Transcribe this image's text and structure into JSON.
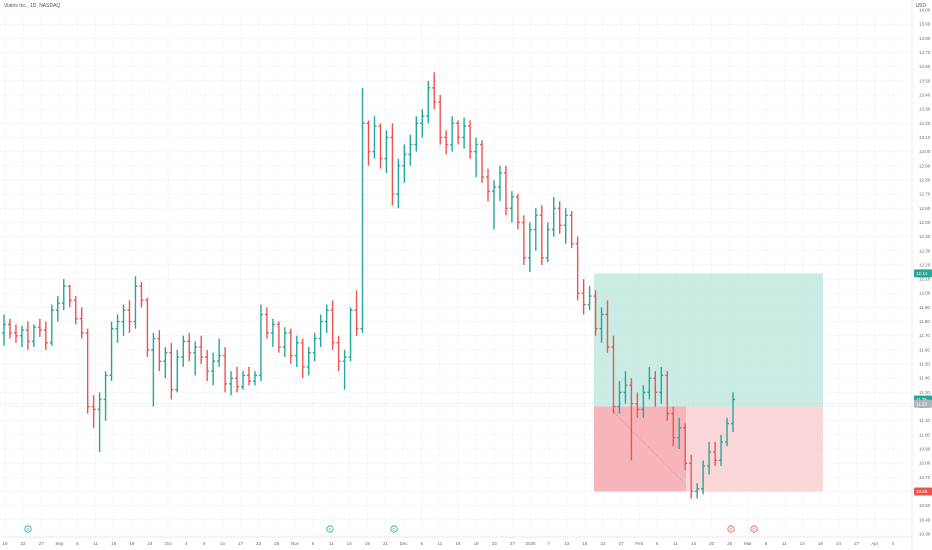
{
  "header": {
    "symbol_title": "Viatris Inc., 1D, NASDAQ",
    "currency": "USD"
  },
  "colors": {
    "up": "#26a69a",
    "down": "#ef5350",
    "target_zone": "#b9e6dc",
    "stop_zone": "#f9c9cd",
    "grid": "#f0f3f6",
    "axis_text": "#6b6b6b"
  },
  "chart_data": {
    "type": "bar",
    "title": "Viatris Inc., 1D, NASDAQ",
    "y_unit": "USD",
    "ylim": [
      10.3,
      14.0
    ],
    "y_ticks": [
      "14.00",
      "13.90",
      "13.80",
      "13.70",
      "13.60",
      "13.50",
      "13.40",
      "13.30",
      "13.20",
      "13.10",
      "13.00",
      "12.90",
      "12.80",
      "12.70",
      "12.60",
      "12.50",
      "12.40",
      "12.30",
      "12.20",
      "12.10",
      "12.00",
      "11.90",
      "11.80",
      "11.70",
      "11.60",
      "11.50",
      "11.40",
      "11.30",
      "11.20",
      "11.10",
      "11.00",
      "10.90",
      "10.80",
      "10.70",
      "10.60",
      "10.50",
      "10.40",
      "10.30"
    ],
    "x_ticks": [
      "19",
      "22",
      "27",
      "Sep",
      "6",
      "11",
      "16",
      "19",
      "24",
      "Oct",
      "4",
      "9",
      "14",
      "17",
      "22",
      "25",
      "Nov",
      "6",
      "11",
      "14",
      "19",
      "21",
      "Dec",
      "6",
      "11",
      "16",
      "19",
      "23",
      "27",
      "2025",
      "7",
      "13",
      "16",
      "22",
      "27",
      "Feb",
      "6",
      "11",
      "14",
      "20",
      "25",
      "Mar",
      "6",
      "11",
      "14",
      "19",
      "24",
      "27",
      "Apr",
      "4"
    ],
    "series": [
      {
        "ohlc": [
          [
            11.72,
            11.85,
            11.63,
            11.78
          ],
          [
            11.78,
            11.82,
            11.68,
            11.72
          ],
          [
            11.72,
            11.78,
            11.65,
            11.7
          ],
          [
            11.7,
            11.77,
            11.62,
            11.74
          ],
          [
            11.74,
            11.8,
            11.6,
            11.66
          ],
          [
            11.66,
            11.78,
            11.62,
            11.76
          ],
          [
            11.76,
            11.82,
            11.69,
            11.74
          ],
          [
            11.74,
            11.8,
            11.6,
            11.65
          ],
          [
            11.65,
            11.92,
            11.63,
            11.88
          ],
          [
            11.88,
            11.98,
            11.8,
            11.93
          ],
          [
            11.93,
            12.1,
            11.88,
            12.05
          ],
          [
            12.05,
            12.06,
            11.9,
            11.95
          ],
          [
            11.95,
            11.98,
            11.78,
            11.82
          ],
          [
            11.82,
            11.9,
            11.68,
            11.72
          ],
          [
            11.72,
            11.75,
            11.15,
            11.2
          ],
          [
            11.2,
            11.28,
            11.05,
            11.18
          ],
          [
            11.18,
            11.3,
            10.88,
            11.25
          ],
          [
            11.25,
            11.45,
            11.1,
            11.42
          ],
          [
            11.42,
            11.8,
            11.38,
            11.75
          ],
          [
            11.75,
            11.85,
            11.65,
            11.8
          ],
          [
            11.8,
            11.92,
            11.7,
            11.88
          ],
          [
            11.88,
            11.95,
            11.72,
            11.8
          ],
          [
            11.8,
            12.12,
            11.75,
            12.05
          ],
          [
            12.05,
            12.08,
            11.9,
            11.95
          ],
          [
            11.95,
            11.97,
            11.55,
            11.6
          ],
          [
            11.6,
            11.72,
            11.2,
            11.68
          ],
          [
            11.68,
            11.74,
            11.45,
            11.52
          ],
          [
            11.52,
            11.62,
            11.4,
            11.58
          ],
          [
            11.58,
            11.65,
            11.25,
            11.32
          ],
          [
            11.32,
            11.6,
            11.3,
            11.55
          ],
          [
            11.55,
            11.7,
            11.48,
            11.66
          ],
          [
            11.66,
            11.72,
            11.52,
            11.58
          ],
          [
            11.58,
            11.66,
            11.42,
            11.62
          ],
          [
            11.62,
            11.7,
            11.5,
            11.55
          ],
          [
            11.55,
            11.6,
            11.38,
            11.45
          ],
          [
            11.45,
            11.58,
            11.35,
            11.52
          ],
          [
            11.52,
            11.68,
            11.48,
            11.56
          ],
          [
            11.56,
            11.62,
            11.3,
            11.36
          ],
          [
            11.36,
            11.45,
            11.28,
            11.4
          ],
          [
            11.4,
            11.48,
            11.3,
            11.34
          ],
          [
            11.34,
            11.45,
            11.32,
            11.42
          ],
          [
            11.42,
            11.48,
            11.35,
            11.38
          ],
          [
            11.38,
            11.45,
            11.35,
            11.42
          ],
          [
            11.42,
            11.92,
            11.38,
            11.85
          ],
          [
            11.85,
            11.9,
            11.68,
            11.72
          ],
          [
            11.72,
            11.82,
            11.62,
            11.78
          ],
          [
            11.78,
            11.8,
            11.58,
            11.62
          ],
          [
            11.62,
            11.76,
            11.55,
            11.72
          ],
          [
            11.72,
            11.75,
            11.5,
            11.56
          ],
          [
            11.56,
            11.7,
            11.48,
            11.65
          ],
          [
            11.65,
            11.68,
            11.4,
            11.48
          ],
          [
            11.48,
            11.62,
            11.42,
            11.58
          ],
          [
            11.58,
            11.72,
            11.52,
            11.68
          ],
          [
            11.68,
            11.85,
            11.62,
            11.8
          ],
          [
            11.8,
            11.92,
            11.72,
            11.88
          ],
          [
            11.88,
            11.95,
            11.6,
            11.65
          ],
          [
            11.65,
            11.7,
            11.45,
            11.52
          ],
          [
            11.52,
            11.6,
            11.32,
            11.55
          ],
          [
            11.55,
            11.9,
            11.52,
            11.88
          ],
          [
            11.88,
            12.02,
            11.7,
            11.75
          ],
          [
            11.75,
            13.45,
            11.72,
            13.2
          ],
          [
            13.2,
            13.22,
            12.9,
            13.0
          ],
          [
            13.0,
            13.25,
            12.95,
            13.18
          ],
          [
            13.18,
            13.2,
            12.88,
            12.95
          ],
          [
            12.95,
            13.15,
            12.85,
            13.1
          ],
          [
            13.1,
            13.2,
            12.62,
            12.7
          ],
          [
            12.7,
            12.95,
            12.6,
            12.9
          ],
          [
            12.9,
            13.05,
            12.78,
            12.98
          ],
          [
            12.98,
            13.12,
            12.9,
            13.05
          ],
          [
            13.05,
            13.25,
            13.0,
            13.2
          ],
          [
            13.2,
            13.3,
            13.1,
            13.25
          ],
          [
            13.25,
            13.5,
            13.2,
            13.45
          ],
          [
            13.45,
            13.56,
            13.3,
            13.35
          ],
          [
            13.35,
            13.4,
            13.05,
            13.1
          ],
          [
            13.1,
            13.15,
            12.98,
            13.05
          ],
          [
            13.05,
            13.25,
            13.0,
            13.2
          ],
          [
            13.2,
            13.22,
            13.05,
            13.1
          ],
          [
            13.1,
            13.24,
            13.02,
            13.18
          ],
          [
            13.18,
            13.22,
            12.95,
            13.0
          ],
          [
            13.0,
            13.1,
            12.82,
            13.05
          ],
          [
            13.05,
            13.08,
            12.78,
            12.82
          ],
          [
            12.82,
            12.88,
            12.65,
            12.72
          ],
          [
            12.72,
            12.8,
            12.45,
            12.75
          ],
          [
            12.75,
            12.9,
            12.65,
            12.85
          ],
          [
            12.85,
            12.9,
            12.55,
            12.6
          ],
          [
            12.6,
            12.72,
            12.5,
            12.68
          ],
          [
            12.68,
            12.7,
            12.45,
            12.5
          ],
          [
            12.5,
            12.55,
            12.2,
            12.25
          ],
          [
            12.25,
            12.5,
            12.15,
            12.45
          ],
          [
            12.45,
            12.6,
            12.3,
            12.55
          ],
          [
            12.55,
            12.62,
            12.2,
            12.25
          ],
          [
            12.25,
            12.5,
            12.22,
            12.45
          ],
          [
            12.45,
            12.68,
            12.4,
            12.6
          ],
          [
            12.6,
            12.65,
            12.42,
            12.48
          ],
          [
            12.48,
            12.6,
            12.35,
            12.55
          ],
          [
            12.55,
            12.58,
            12.32,
            12.35
          ],
          [
            12.35,
            12.4,
            11.95,
            12.0
          ],
          [
            12.0,
            12.1,
            11.85,
            11.92
          ],
          [
            11.92,
            12.05,
            11.88,
            11.98
          ],
          [
            11.98,
            12.02,
            11.7,
            11.75
          ],
          [
            11.75,
            11.9,
            11.65,
            11.85
          ],
          [
            11.85,
            11.95,
            11.58,
            11.62
          ],
          [
            11.62,
            11.7,
            11.15,
            11.2
          ],
          [
            11.2,
            11.38,
            11.15,
            11.3
          ],
          [
            11.3,
            11.45,
            11.22,
            11.35
          ],
          [
            11.35,
            11.4,
            10.82,
            11.22
          ],
          [
            11.22,
            11.3,
            11.12,
            11.18
          ],
          [
            11.18,
            11.35,
            11.12,
            11.3
          ],
          [
            11.3,
            11.48,
            11.25,
            11.4
          ],
          [
            11.4,
            11.45,
            11.2,
            11.3
          ],
          [
            11.3,
            11.48,
            11.22,
            11.42
          ],
          [
            11.42,
            11.45,
            11.1,
            11.15
          ],
          [
            11.15,
            11.2,
            10.92,
            10.98
          ],
          [
            10.98,
            11.12,
            10.9,
            11.05
          ],
          [
            11.05,
            11.08,
            10.75,
            10.8
          ],
          [
            10.8,
            10.86,
            10.55,
            10.6
          ],
          [
            10.6,
            10.66,
            10.55,
            10.62
          ],
          [
            10.62,
            10.82,
            10.58,
            10.78
          ],
          [
            10.78,
            10.95,
            10.72,
            10.88
          ],
          [
            10.88,
            10.95,
            10.78,
            10.82
          ],
          [
            10.82,
            11.0,
            10.78,
            10.95
          ],
          [
            10.95,
            11.12,
            10.92,
            11.08
          ],
          [
            11.08,
            11.3,
            11.02,
            11.25
          ]
        ]
      }
    ],
    "position": {
      "target": 12.14,
      "entry": 11.2,
      "stop": 10.6
    },
    "price_tags": [
      {
        "label": "12.14",
        "value": 12.14,
        "color": "#26a69a"
      },
      {
        "label": "11.25",
        "value": 11.25,
        "color": "#26a69a"
      },
      {
        "label": "11.22",
        "value": 11.22,
        "color": "#b0b6bf"
      },
      {
        "label": "10.60",
        "value": 10.6,
        "color": "#ef5350"
      }
    ],
    "event_markers": [
      {
        "label": "D",
        "color": "#26a69a",
        "at": "19"
      },
      {
        "label": "E",
        "color": "#26a69a",
        "at": "Nov"
      },
      {
        "label": "D",
        "color": "#26a69a",
        "at": "21"
      },
      {
        "label": "E",
        "color": "#ef5350",
        "at": "20"
      },
      {
        "label": "D",
        "color": "#ef5350",
        "at": "25"
      }
    ],
    "grid": true
  }
}
